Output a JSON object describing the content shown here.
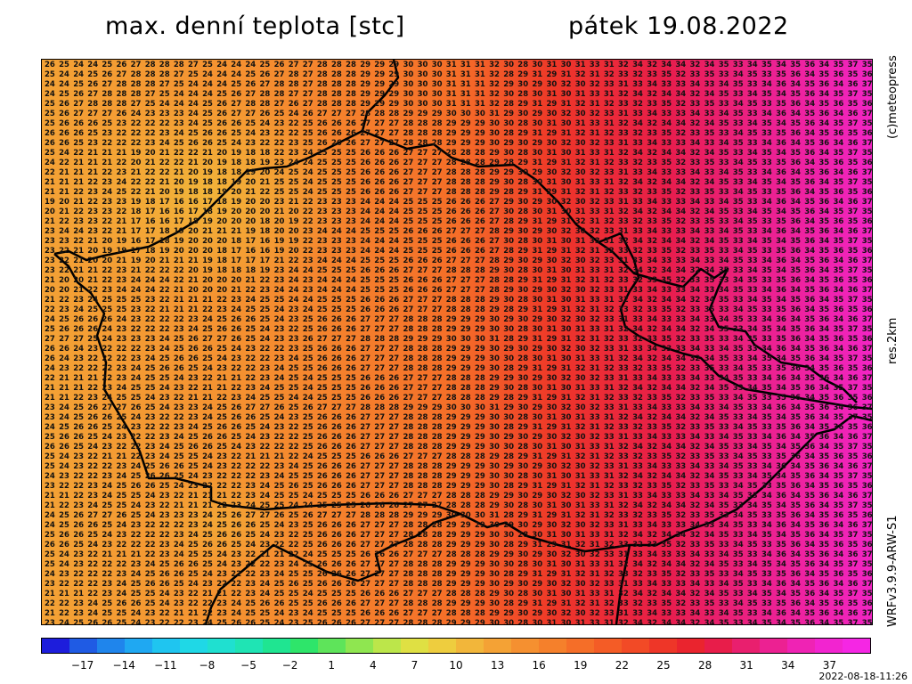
{
  "header": {
    "title_left": "max. denní teplota [stc]",
    "title_right": "pátek 19.08.2022"
  },
  "side_labels": {
    "copyright": "(c)meteopress",
    "resolution": "res.2km",
    "model": "WRFv3.9.9-ARW-S1"
  },
  "map": {
    "variable": "maximum daily temperature",
    "unit": "°C",
    "rows_top_left_values": [
      "26",
      "26",
      "26",
      "26",
      "26",
      "25",
      "24",
      "24",
      "24",
      "23",
      "23",
      "23",
      "23",
      "23",
      "21",
      "21",
      "21",
      "22",
      "21",
      "21",
      "22",
      "23",
      "22",
      "22",
      "23",
      "23",
      "24",
      "24",
      "25",
      "24",
      "24",
      "24",
      "23",
      "23",
      "23",
      "25",
      "24",
      "24",
      "24",
      "24",
      "23",
      "24",
      "24",
      "24",
      "23",
      "23",
      "25",
      "24",
      "24",
      "24",
      "23",
      "24",
      "24",
      "24",
      "23",
      "24",
      "23",
      "24"
    ],
    "value_range": [
      16,
      38
    ],
    "region_outline_color": "#000000"
  },
  "colorbar": {
    "colors": [
      "#1d1ddc",
      "#1f5be4",
      "#1f85ec",
      "#1fa8f2",
      "#1fc5f0",
      "#1fd8e6",
      "#1fe0d0",
      "#1fe4b4",
      "#1fe591",
      "#2ee56a",
      "#5ee45a",
      "#8fe650",
      "#bce64a",
      "#dfe043",
      "#eecd3e",
      "#f2b63a",
      "#f4a235",
      "#f59030",
      "#f5802b",
      "#f56e28",
      "#f45c26",
      "#f24a26",
      "#ee3628",
      "#ea242e",
      "#e81d4a",
      "#e91f6e",
      "#ec2192",
      "#ef23b4",
      "#f224d0",
      "#f526e4"
    ],
    "tick_labels": [
      "−17",
      "−14",
      "−11",
      "−8",
      "−5",
      "−2",
      "1",
      "4",
      "7",
      "10",
      "13",
      "16",
      "19",
      "22",
      "25",
      "28",
      "31",
      "34",
      "37"
    ],
    "tick_values": [
      -17,
      -14,
      -11,
      -8,
      -5,
      -2,
      1,
      4,
      7,
      10,
      13,
      16,
      19,
      22,
      25,
      28,
      31,
      34,
      37
    ],
    "min": -20,
    "max": 40
  },
  "footer": {
    "timestamp": "2022-08-18-11:26"
  }
}
